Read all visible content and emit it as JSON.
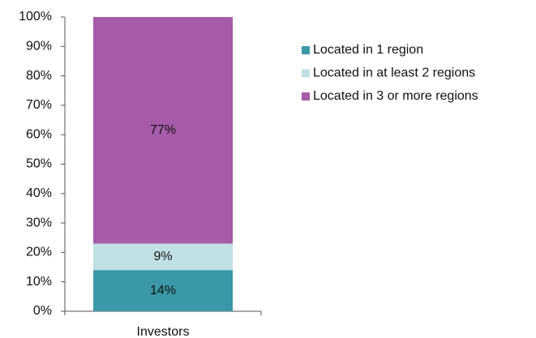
{
  "chart_data": {
    "type": "stacked_bar",
    "categories": [
      "Investors"
    ],
    "series": [
      {
        "name": "Located in 1 region",
        "color": "#3a98a8",
        "values": [
          14
        ],
        "value_labels": [
          "14%"
        ]
      },
      {
        "name": "Located in at least 2 regions",
        "color": "#c0e0e4",
        "values": [
          9
        ],
        "value_labels": [
          "9%"
        ]
      },
      {
        "name": "Located in 3 or more regions",
        "color": "#a75ba9",
        "values": [
          77
        ],
        "value_labels": [
          "77%"
        ]
      }
    ],
    "ylim": [
      0,
      100
    ],
    "yticks": [
      {
        "value": 0,
        "label": "0%"
      },
      {
        "value": 10,
        "label": "10%"
      },
      {
        "value": 20,
        "label": "20%"
      },
      {
        "value": 30,
        "label": "30%"
      },
      {
        "value": 40,
        "label": "40%"
      },
      {
        "value": 50,
        "label": "50%"
      },
      {
        "value": 60,
        "label": "60%"
      },
      {
        "value": 70,
        "label": "70%"
      },
      {
        "value": 80,
        "label": "80%"
      },
      {
        "value": 90,
        "label": "90%"
      },
      {
        "value": 100,
        "label": "100%"
      }
    ],
    "legend": "right"
  }
}
